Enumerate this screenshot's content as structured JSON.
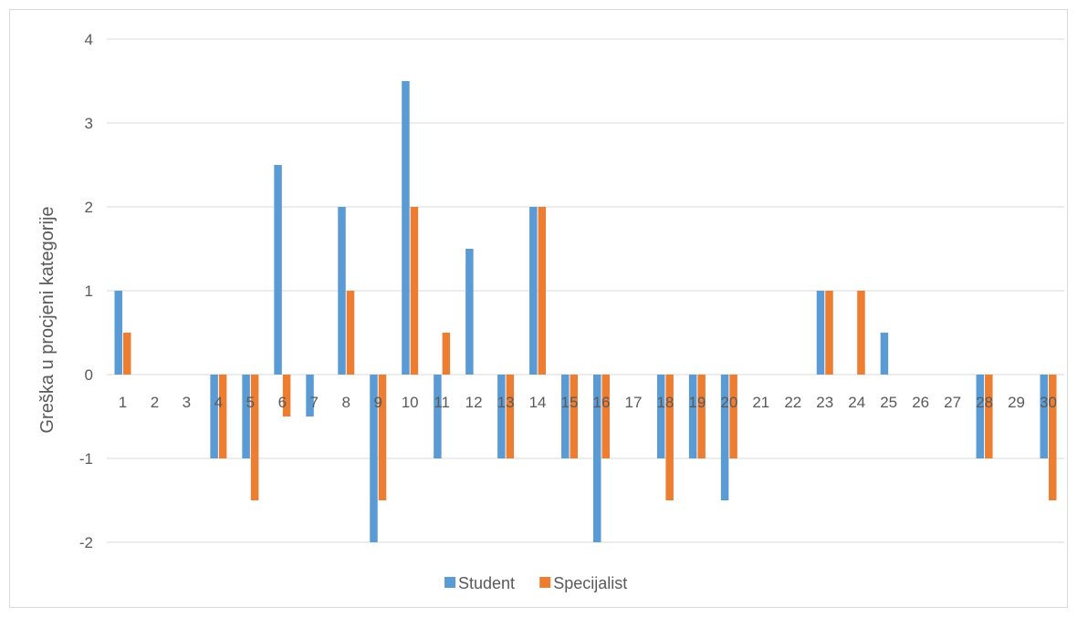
{
  "chart_data": {
    "type": "bar",
    "title": "",
    "xlabel": "",
    "ylabel": "Greška u procjeni kategorije",
    "ylim": [
      -2,
      4
    ],
    "yticks": [
      -2,
      -1,
      0,
      1,
      2,
      3,
      4
    ],
    "grid": true,
    "legend_position": "bottom",
    "categories": [
      "1",
      "2",
      "3",
      "4",
      "5",
      "6",
      "7",
      "8",
      "9",
      "10",
      "11",
      "12",
      "13",
      "14",
      "15",
      "16",
      "17",
      "18",
      "19",
      "20",
      "21",
      "22",
      "23",
      "24",
      "25",
      "26",
      "27",
      "28",
      "29",
      "30"
    ],
    "series": [
      {
        "name": "Student",
        "color": "#5b9bd5",
        "values": [
          1,
          0,
          0,
          -1,
          -1,
          2.5,
          -0.5,
          2,
          -2,
          3.5,
          -1,
          1.5,
          -1,
          2,
          -1,
          -2,
          0,
          -1,
          -1,
          -1.5,
          0,
          0,
          1,
          0,
          0.5,
          0,
          0,
          -1,
          0,
          -1
        ]
      },
      {
        "name": "Specijalist",
        "color": "#ed7d31",
        "values": [
          0.5,
          0,
          0,
          -1,
          -1.5,
          -0.5,
          0,
          1,
          -1.5,
          2,
          0.5,
          0,
          -1,
          2,
          -1,
          -1,
          0,
          -1.5,
          -1,
          -1,
          0,
          0,
          1,
          1,
          0,
          0,
          0,
          -1,
          0,
          -1.5
        ]
      }
    ]
  }
}
